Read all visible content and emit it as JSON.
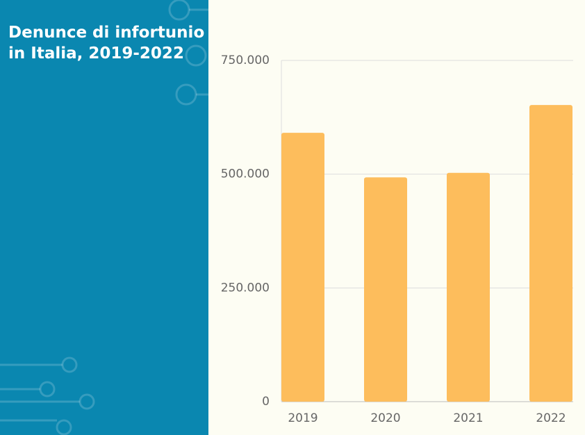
{
  "chart_data": {
    "type": "bar",
    "title": "Denunce di infortunio in Italia, 2019-2022",
    "categories": [
      "2019",
      "2020",
      "2021",
      "2022"
    ],
    "values": [
      591000,
      493000,
      503000,
      652000
    ],
    "color": "#fdbd5c",
    "ylim": [
      0,
      750000
    ],
    "yticks": [
      0,
      {
        "value": 250000,
        "label": "250.000"
      },
      {
        "value": 500000,
        "label": "500.000"
      },
      {
        "value": 750000,
        "label": "750.000"
      }
    ],
    "grid": true
  }
}
